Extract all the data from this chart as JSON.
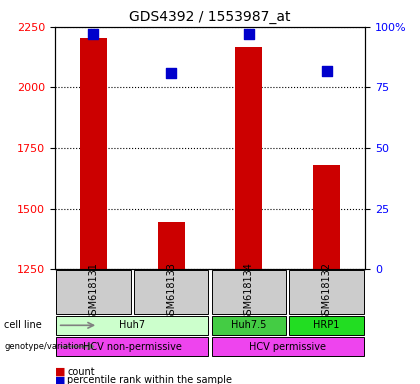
{
  "title": "GDS4392 / 1553987_at",
  "samples": [
    "GSM618131",
    "GSM618133",
    "GSM618134",
    "GSM618132"
  ],
  "counts": [
    2205,
    1445,
    2165,
    1680
  ],
  "percentiles": [
    97,
    81,
    97,
    82
  ],
  "ylim_left": [
    1250,
    2250
  ],
  "ylim_right": [
    0,
    100
  ],
  "yticks_left": [
    1250,
    1500,
    1750,
    2000,
    2250
  ],
  "yticks_right": [
    0,
    25,
    50,
    75,
    100
  ],
  "ytick_labels_right": [
    "0",
    "25",
    "50",
    "75",
    "100%"
  ],
  "bar_color": "#cc0000",
  "dot_color": "#0000cc",
  "cell_line_row": {
    "label": "cell line",
    "groups": [
      {
        "name": "Huh7",
        "span": [
          0,
          2
        ],
        "color": "#ccffcc"
      },
      {
        "name": "Huh7.5",
        "span": [
          2,
          3
        ],
        "color": "#44cc44"
      },
      {
        "name": "HRP1",
        "span": [
          3,
          4
        ],
        "color": "#22dd22"
      }
    ]
  },
  "genotype_row": {
    "label": "genotype/variation",
    "groups": [
      {
        "name": "HCV non-permissive",
        "span": [
          0,
          2
        ],
        "color": "#ee44ee"
      },
      {
        "name": "HCV permissive",
        "span": [
          2,
          4
        ],
        "color": "#ee44ee"
      }
    ]
  },
  "legend": [
    {
      "color": "#cc0000",
      "label": "count"
    },
    {
      "color": "#0000cc",
      "label": "percentile rank within the sample"
    }
  ],
  "sample_bg_color": "#cccccc",
  "bar_width": 0.35,
  "dot_size": 50
}
